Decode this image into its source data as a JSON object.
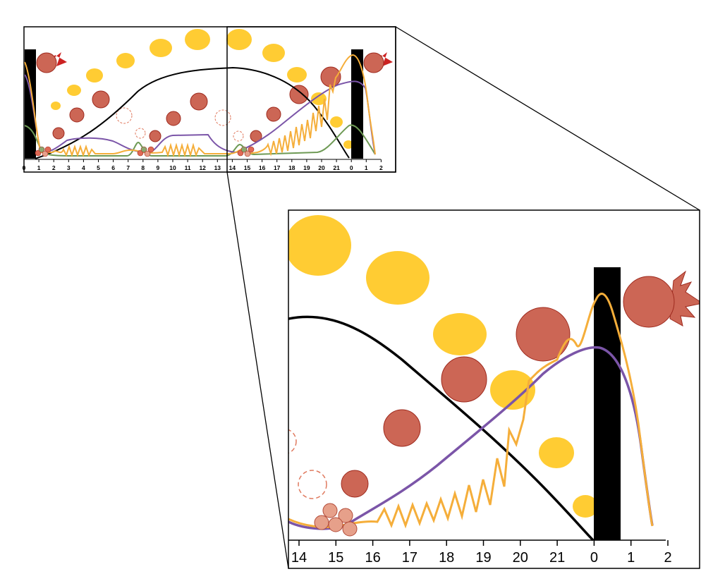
{
  "colors": {
    "yellow": "#FFCC33",
    "red_cell": "#CC6655",
    "red_cell_stroke": "#9E2A1E",
    "light_cell": "#E6A08A",
    "green_cell": "#8CA870",
    "orange_line": "#F5AE3A",
    "purple_line": "#7B55A8",
    "green_line": "#6E9A55",
    "black_line": "#000000",
    "dashed_circle": "#E07A5F",
    "burst": "#CC6655"
  },
  "overview_panel": {
    "axis_ticks": [
      "0",
      "1",
      "2",
      "3",
      "4",
      "5",
      "6",
      "7",
      "8",
      "9",
      "10",
      "11",
      "12",
      "13",
      "14",
      "15",
      "16",
      "17",
      "18",
      "19",
      "20",
      "21",
      "0",
      "1",
      "2"
    ]
  },
  "zoom_panel": {
    "axis_ticks": [
      "14",
      "15",
      "16",
      "17",
      "18",
      "19",
      "20",
      "21",
      "0",
      "1",
      "2"
    ]
  }
}
